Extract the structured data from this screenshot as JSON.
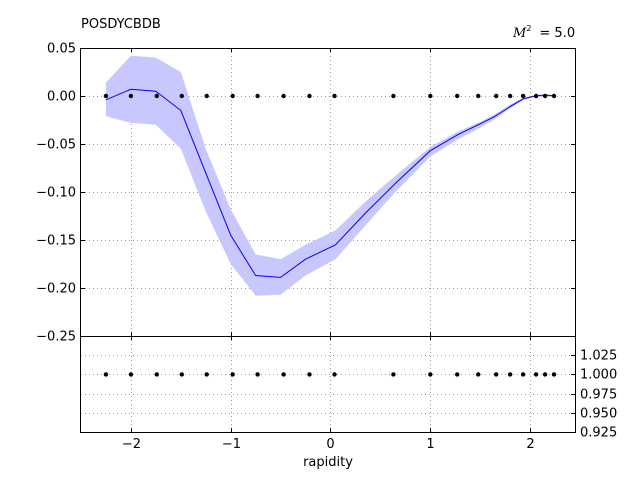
{
  "chart_data": {
    "type": "line",
    "title": "POSDYCBDB",
    "annotation": {
      "symbol": "M",
      "superscript": "2",
      "text": "= 5.0"
    },
    "xlabel": "rapidity",
    "xlim": [
      -2.5,
      2.45
    ],
    "xticks": [
      -2,
      -1,
      0,
      1,
      2
    ],
    "xtick_labels": [
      "−2",
      "−1",
      "0",
      "1",
      "2"
    ],
    "grid": true,
    "colors": {
      "band": "#c8c8ff",
      "line": "#0000ff",
      "points": "#000000",
      "grid": "#808080"
    },
    "top_panel": {
      "ylim": [
        -0.25,
        0.05
      ],
      "yticks": [
        -0.25,
        -0.2,
        -0.15,
        -0.1,
        -0.05,
        0.0,
        0.05
      ],
      "ytick_labels": [
        "−0.25",
        "−0.20",
        "−0.15",
        "−0.10",
        "−0.05",
        "0.00",
        "0.05"
      ],
      "band": {
        "x": [
          -2.25,
          -2.0,
          -1.75,
          -1.5,
          -1.25,
          -1.0,
          -0.75,
          -0.5,
          -0.25,
          0.05,
          0.35,
          0.65,
          1.0,
          1.28,
          1.5,
          1.65,
          1.8,
          1.93,
          2.05,
          2.15,
          2.25
        ],
        "upper": [
          0.014,
          0.042,
          0.04,
          0.025,
          -0.055,
          -0.118,
          -0.165,
          -0.17,
          -0.155,
          -0.14,
          -0.11,
          -0.083,
          -0.053,
          -0.037,
          -0.027,
          -0.019,
          -0.009,
          -0.002,
          0.001,
          0.002,
          0.001
        ],
        "lower": [
          -0.021,
          -0.028,
          -0.03,
          -0.055,
          -0.12,
          -0.175,
          -0.208,
          -0.207,
          -0.187,
          -0.17,
          -0.135,
          -0.1,
          -0.063,
          -0.045,
          -0.033,
          -0.024,
          -0.013,
          -0.004,
          -0.001,
          0.0,
          -0.001
        ]
      },
      "series": [
        {
          "x": [
            -2.25,
            -2.0,
            -1.75,
            -1.5,
            -1.25,
            -1.0,
            -0.75,
            -0.5,
            -0.25,
            0.05,
            0.35,
            0.65,
            1.0,
            1.28,
            1.5,
            1.65,
            1.8,
            1.93,
            2.05,
            2.15,
            2.25
          ],
          "y": [
            -0.004,
            0.007,
            0.005,
            -0.015,
            -0.08,
            -0.145,
            -0.187,
            -0.189,
            -0.17,
            -0.155,
            -0.122,
            -0.091,
            -0.057,
            -0.04,
            -0.029,
            -0.021,
            -0.011,
            -0.003,
            0.0,
            0.001,
            0.0
          ]
        }
      ],
      "points": {
        "x": [
          -2.25,
          -2.0,
          -1.74,
          -1.49,
          -1.24,
          -0.98,
          -0.73,
          -0.47,
          -0.21,
          0.04,
          0.63,
          1.0,
          1.27,
          1.48,
          1.66,
          1.8,
          1.93,
          2.06,
          2.15,
          2.24
        ],
        "y": [
          0,
          0,
          0,
          0,
          0,
          0,
          0,
          0,
          0,
          0,
          0,
          0,
          0,
          0,
          0,
          0,
          0,
          0,
          0,
          0
        ]
      }
    },
    "bottom_panel": {
      "ylim": [
        0.925,
        1.05
      ],
      "yticks": [
        0.925,
        0.95,
        0.975,
        1.0,
        1.025
      ],
      "ytick_labels": [
        "0.925",
        "0.950",
        "0.975",
        "1.000",
        "1.025"
      ],
      "points": {
        "x": [
          -2.25,
          -2.0,
          -1.74,
          -1.49,
          -1.24,
          -0.98,
          -0.73,
          -0.47,
          -0.21,
          0.04,
          0.63,
          1.0,
          1.27,
          1.48,
          1.66,
          1.8,
          1.93,
          2.06,
          2.15,
          2.24
        ],
        "y": [
          1,
          1,
          1,
          1,
          1,
          1,
          1,
          1,
          1,
          1,
          1,
          1,
          1,
          1,
          1,
          1,
          1,
          1,
          1,
          1
        ]
      }
    }
  }
}
